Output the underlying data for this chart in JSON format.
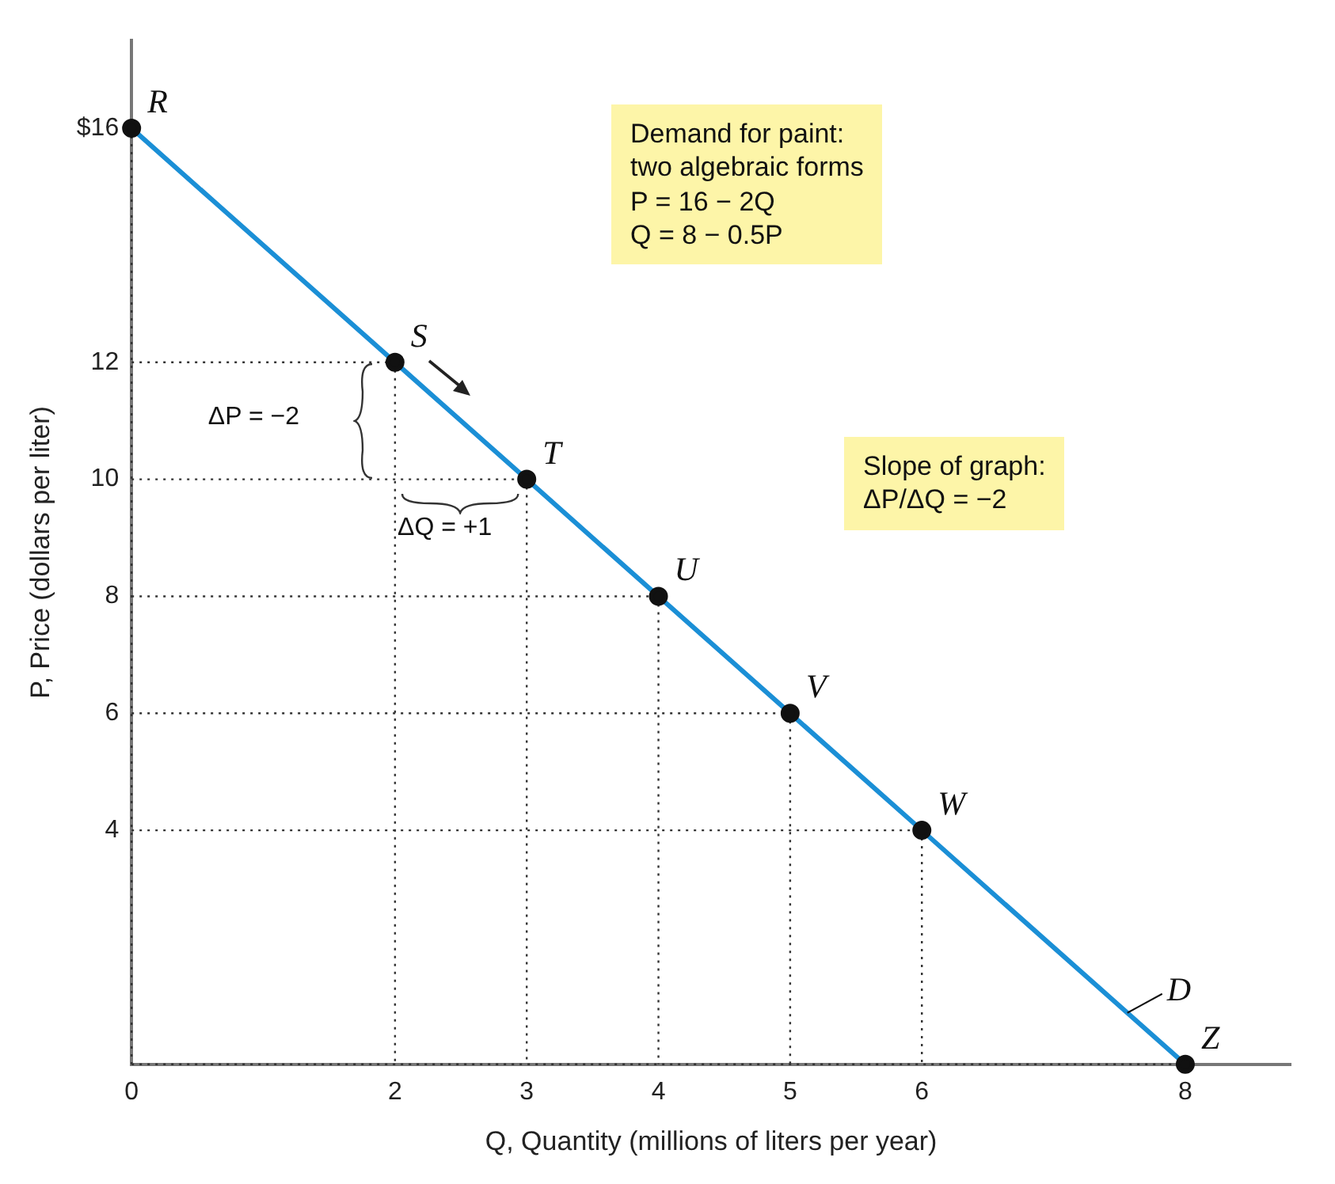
{
  "chart_data": {
    "type": "line",
    "xlabel": "Q, Quantity (millions of liters per year)",
    "ylabel": "P, Price (dollars per liter)",
    "x": [
      0,
      2,
      3,
      4,
      5,
      6,
      8
    ],
    "series": [
      {
        "name": "D",
        "color": "#1b8fd6",
        "values": [
          16,
          12,
          10,
          8,
          6,
          4,
          0
        ]
      }
    ],
    "xlim": [
      0,
      8.8
    ],
    "ylim": [
      0,
      17.5
    ],
    "xticks": [
      0,
      2,
      3,
      4,
      5,
      6,
      8
    ],
    "yticks": [
      {
        "value": 16,
        "label": "$16"
      },
      12,
      10,
      8,
      6,
      4
    ],
    "marker": "circle",
    "line_style": "solid",
    "annotations": [
      {
        "text": "R",
        "x": 0,
        "y": 16
      },
      {
        "text": "S",
        "x": 2,
        "y": 12
      },
      {
        "text": "T",
        "x": 3,
        "y": 10
      },
      {
        "text": "U",
        "x": 4,
        "y": 8
      },
      {
        "text": "V",
        "x": 5,
        "y": 6
      },
      {
        "text": "W",
        "x": 6,
        "y": 4
      },
      {
        "text": "Z",
        "x": 8,
        "y": 0
      },
      "Demand for paint:\ntwo algebraic forms\nP = 16 − 2Q\nQ = 8 − 0.5P",
      "Slope of graph:\nΔP/ΔQ = −2",
      "ΔP = −2",
      "ΔQ = +1"
    ]
  }
}
